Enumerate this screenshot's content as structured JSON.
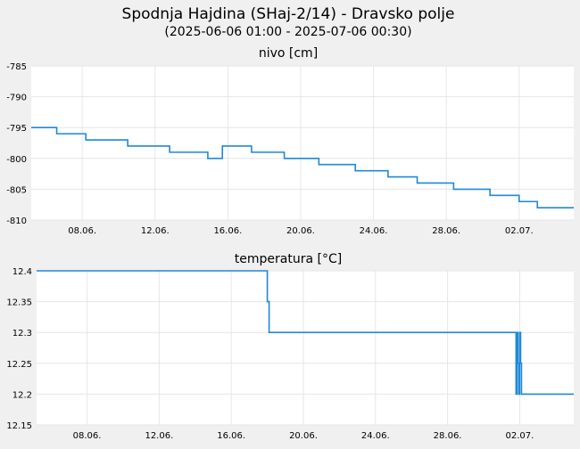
{
  "title": "Spodnja Hajdina (SHaj-2/14) - Dravsko polje",
  "subtitle": "(2025-06-06 01:00 - 2025-07-06 00:30)",
  "colors": {
    "background": "#f0f0f0",
    "plot_background": "#ffffff",
    "grid": "#e6e6e6",
    "line": "#1f88d8"
  },
  "chart_data": [
    {
      "type": "line",
      "title": "nivo [cm]",
      "xlabel": "",
      "ylabel": "",
      "x_range": [
        5.2,
        35.0
      ],
      "ylim": [
        -810,
        -785
      ],
      "yticks": [
        -785,
        -790,
        -795,
        -800,
        -805,
        -810
      ],
      "ytick_labels": [
        "-785",
        "-790",
        "-795",
        "-800",
        "-805",
        "-810"
      ],
      "xticks": [
        8,
        12,
        16,
        20,
        24,
        28,
        32
      ],
      "xtick_labels": [
        "08.06.",
        "12.06.",
        "16.06.",
        "20.06.",
        "24.06.",
        "28.06.",
        "02.07."
      ],
      "grid": true,
      "series": [
        {
          "color": "#1f88d8",
          "step": true,
          "x": [
            5.2,
            6.6,
            8.2,
            10.5,
            12.8,
            14.9,
            15.7,
            17.3,
            19.1,
            21.0,
            23.0,
            24.8,
            26.4,
            28.4,
            30.4,
            32.0,
            33.0,
            35.0
          ],
          "y": [
            -795,
            -796,
            -797,
            -798,
            -799,
            -800,
            -798,
            -799,
            -800,
            -801,
            -802,
            -803,
            -804,
            -805,
            -806,
            -807,
            -808,
            -808
          ]
        }
      ]
    },
    {
      "type": "line",
      "title": "temperatura [°C]",
      "xlabel": "",
      "ylabel": "",
      "x_range": [
        5.2,
        35.0
      ],
      "ylim": [
        12.15,
        12.4
      ],
      "yticks": [
        12.4,
        12.35,
        12.3,
        12.25,
        12.2,
        12.15
      ],
      "ytick_labels": [
        "12.4",
        "12.35",
        "12.3",
        "12.25",
        "12.2",
        "12.15"
      ],
      "xticks": [
        8,
        12,
        16,
        20,
        24,
        28,
        32
      ],
      "xtick_labels": [
        "08.06.",
        "12.06.",
        "16.06.",
        "20.06.",
        "24.06.",
        "28.06.",
        "02.07."
      ],
      "grid": true,
      "series": [
        {
          "color": "#1f88d8",
          "step": true,
          "x": [
            5.2,
            18.0,
            18.1,
            31.8,
            31.85,
            31.9,
            31.95,
            32.0,
            32.05,
            32.1,
            32.15,
            35.0
          ],
          "y": [
            12.4,
            12.35,
            12.3,
            12.2,
            12.3,
            12.25,
            12.2,
            12.3,
            12.25,
            12.2,
            12.2,
            12.2
          ]
        }
      ]
    }
  ]
}
